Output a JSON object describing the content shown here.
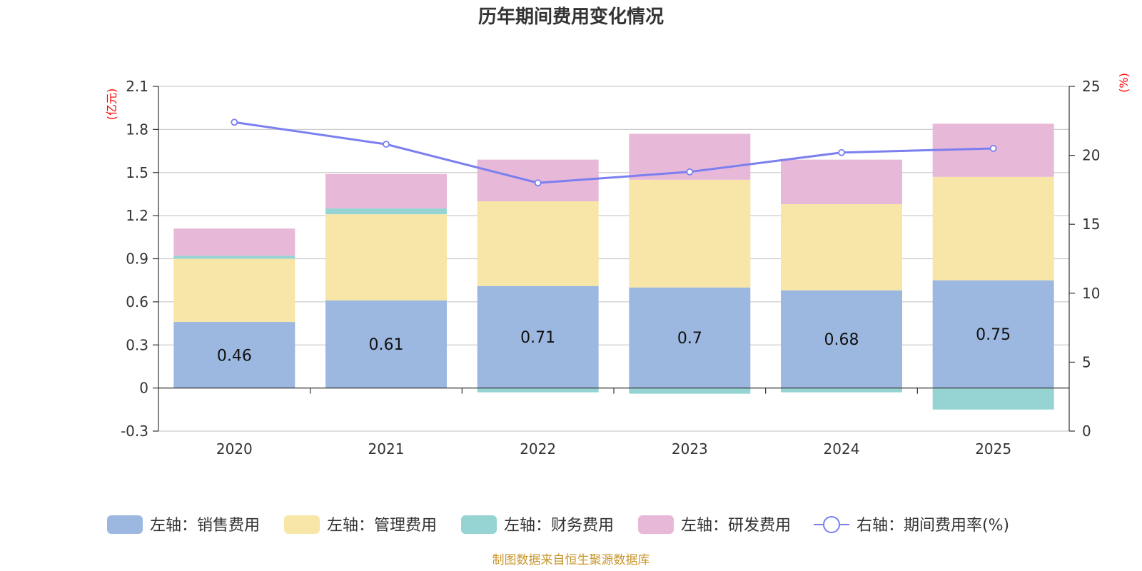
{
  "title": "历年期间费用变化情况",
  "source": "制图数据来自恒生聚源数据库",
  "chart_data": {
    "type": "bar",
    "stacked": true,
    "categories": [
      "2020",
      "2021",
      "2022",
      "2023",
      "2024",
      "2025"
    ],
    "series": [
      {
        "name": "左轴：销售费用",
        "axis": "left",
        "color": "#9cb8e0",
        "values": [
          0.46,
          0.61,
          0.71,
          0.7,
          0.68,
          0.75
        ],
        "show_labels": true
      },
      {
        "name": "左轴：管理费用",
        "axis": "left",
        "color": "#f7e6a7",
        "values": [
          0.44,
          0.6,
          0.59,
          0.75,
          0.6,
          0.72
        ]
      },
      {
        "name": "左轴：财务费用",
        "axis": "left",
        "color": "#96d4d4",
        "values": [
          0.02,
          0.04,
          -0.03,
          -0.04,
          -0.03,
          -0.15
        ]
      },
      {
        "name": "左轴：研发费用",
        "axis": "left",
        "color": "#e8b8d8",
        "values": [
          0.19,
          0.24,
          0.29,
          0.32,
          0.31,
          0.37
        ]
      },
      {
        "name": "右轴：期间费用率(%)",
        "axis": "right",
        "type": "line",
        "color": "#7b7fef",
        "values": [
          22.4,
          20.8,
          18.0,
          18.8,
          20.2,
          20.5
        ]
      }
    ],
    "left_axis": {
      "unit": "(亿元)",
      "min": -0.3,
      "max": 2.1,
      "ticks": [
        "-0.3",
        "0",
        "0.3",
        "0.6",
        "0.9",
        "1.2",
        "1.5",
        "1.8",
        "2.1"
      ]
    },
    "right_axis": {
      "unit": "(%)",
      "min": 0,
      "max": 25,
      "ticks": [
        "0",
        "5",
        "10",
        "15",
        "20",
        "25"
      ]
    },
    "legend_position": "bottom"
  }
}
